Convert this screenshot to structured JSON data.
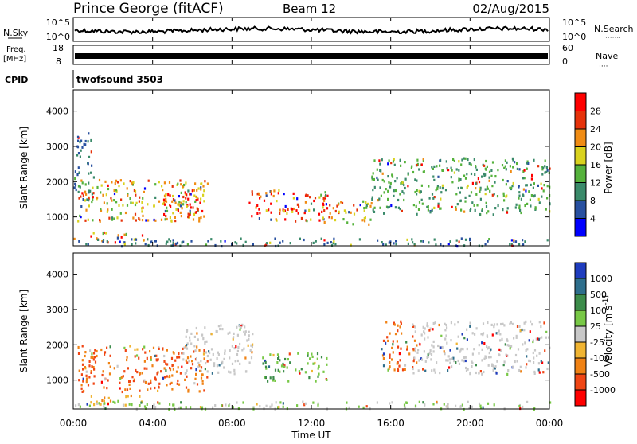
{
  "header": {
    "station": "Prince George (fitACF)",
    "beam": "Beam 12",
    "date": "02/Aug/2015"
  },
  "nsky_panel": {
    "left_label": "N.Sky",
    "right_label": "N.Search",
    "right_sub": "·······",
    "left_ticks": [
      "10^5",
      "10^0"
    ],
    "right_ticks": [
      "10^5",
      "10^0"
    ]
  },
  "freq_panel": {
    "left_label_1": "Freq.",
    "left_label_2": "[MHz]",
    "right_label": "Nave",
    "right_sub": "····",
    "left_ticks": [
      "18",
      "8"
    ],
    "right_ticks": [
      "60",
      "0"
    ]
  },
  "cpid": {
    "label": "CPID",
    "value": "twofsound 3503"
  },
  "x_axis": {
    "title": "Time UT",
    "ticks": [
      "00:00",
      "04:00",
      "08:00",
      "12:00",
      "16:00",
      "20:00",
      "00:00"
    ]
  },
  "chart_data": [
    {
      "type": "heatmap",
      "title": "",
      "xlabel": "Time UT",
      "ylabel": "Slant Range [km]",
      "xlim": [
        0,
        24
      ],
      "ylim": [
        180,
        4600
      ],
      "yticks": [
        1000,
        2000,
        3000,
        4000
      ],
      "colorbar": {
        "label": "Power [dB]",
        "ticks": [
          "4",
          "8",
          "12",
          "16",
          "20",
          "24",
          "28"
        ],
        "colors": [
          "#0000ff",
          "#2850a0",
          "#3a8a6a",
          "#55b23c",
          "#d9d21e",
          "#f08c14",
          "#e6320a",
          "#ff0000"
        ]
      },
      "scatter_regions": [
        {
          "t0": 0.2,
          "t1": 6.8,
          "r0": 900,
          "r1": 2100,
          "level": 20
        },
        {
          "t0": 0.8,
          "t1": 3.6,
          "r0": 300,
          "r1": 600,
          "level": 24
        },
        {
          "t0": 4.5,
          "t1": 6.5,
          "r0": 1000,
          "r1": 1800,
          "level": 28
        },
        {
          "t0": 8.8,
          "t1": 12.8,
          "r0": 900,
          "r1": 1800,
          "level": 28
        },
        {
          "t0": 12.5,
          "t1": 15.0,
          "r0": 800,
          "r1": 1500,
          "level": 20
        },
        {
          "t0": 15.0,
          "t1": 24.0,
          "r0": 1100,
          "r1": 2700,
          "level": 12
        },
        {
          "t0": 0.0,
          "t1": 24.0,
          "r0": 200,
          "r1": 420,
          "level": 8
        },
        {
          "t0": 0.0,
          "t1": 1.0,
          "r0": 1500,
          "r1": 3400,
          "level": 8
        }
      ]
    },
    {
      "type": "heatmap",
      "title": "",
      "xlabel": "Time UT",
      "ylabel": "Slant Range [km]",
      "xlim": [
        0,
        24
      ],
      "ylim": [
        180,
        4600
      ],
      "yticks": [
        1000,
        2000,
        3000,
        4000
      ],
      "colorbar": {
        "label": "Velocity [m s^-1]",
        "ticks": [
          "1000",
          "500",
          "100",
          "25",
          "-25",
          "-100",
          "-500",
          "-1000"
        ],
        "colors": [
          "#1e3cbe",
          "#2e6e8c",
          "#3c8c4a",
          "#78c846",
          "#c8c8c8",
          "#f0b432",
          "#f08214",
          "#f04614",
          "#ff0000"
        ]
      },
      "scatter_regions": [
        {
          "t0": 0.2,
          "t1": 6.8,
          "r0": 700,
          "r1": 2000,
          "level": -500
        },
        {
          "t0": 0.8,
          "t1": 3.6,
          "r0": 300,
          "r1": 600,
          "level": -100
        },
        {
          "t0": 9.5,
          "t1": 12.8,
          "r0": 1000,
          "r1": 1800,
          "level": 100
        },
        {
          "t0": 15.5,
          "t1": 17.2,
          "r0": 1300,
          "r1": 2700,
          "level": -500
        },
        {
          "t0": 17.0,
          "t1": 24.0,
          "r0": 1200,
          "r1": 2700,
          "level": 0
        },
        {
          "t0": 0.0,
          "t1": 24.0,
          "r0": 200,
          "r1": 420,
          "level": 25
        },
        {
          "t0": 5.5,
          "t1": 9.0,
          "r0": 1200,
          "r1": 2600,
          "level": 0
        }
      ]
    }
  ]
}
